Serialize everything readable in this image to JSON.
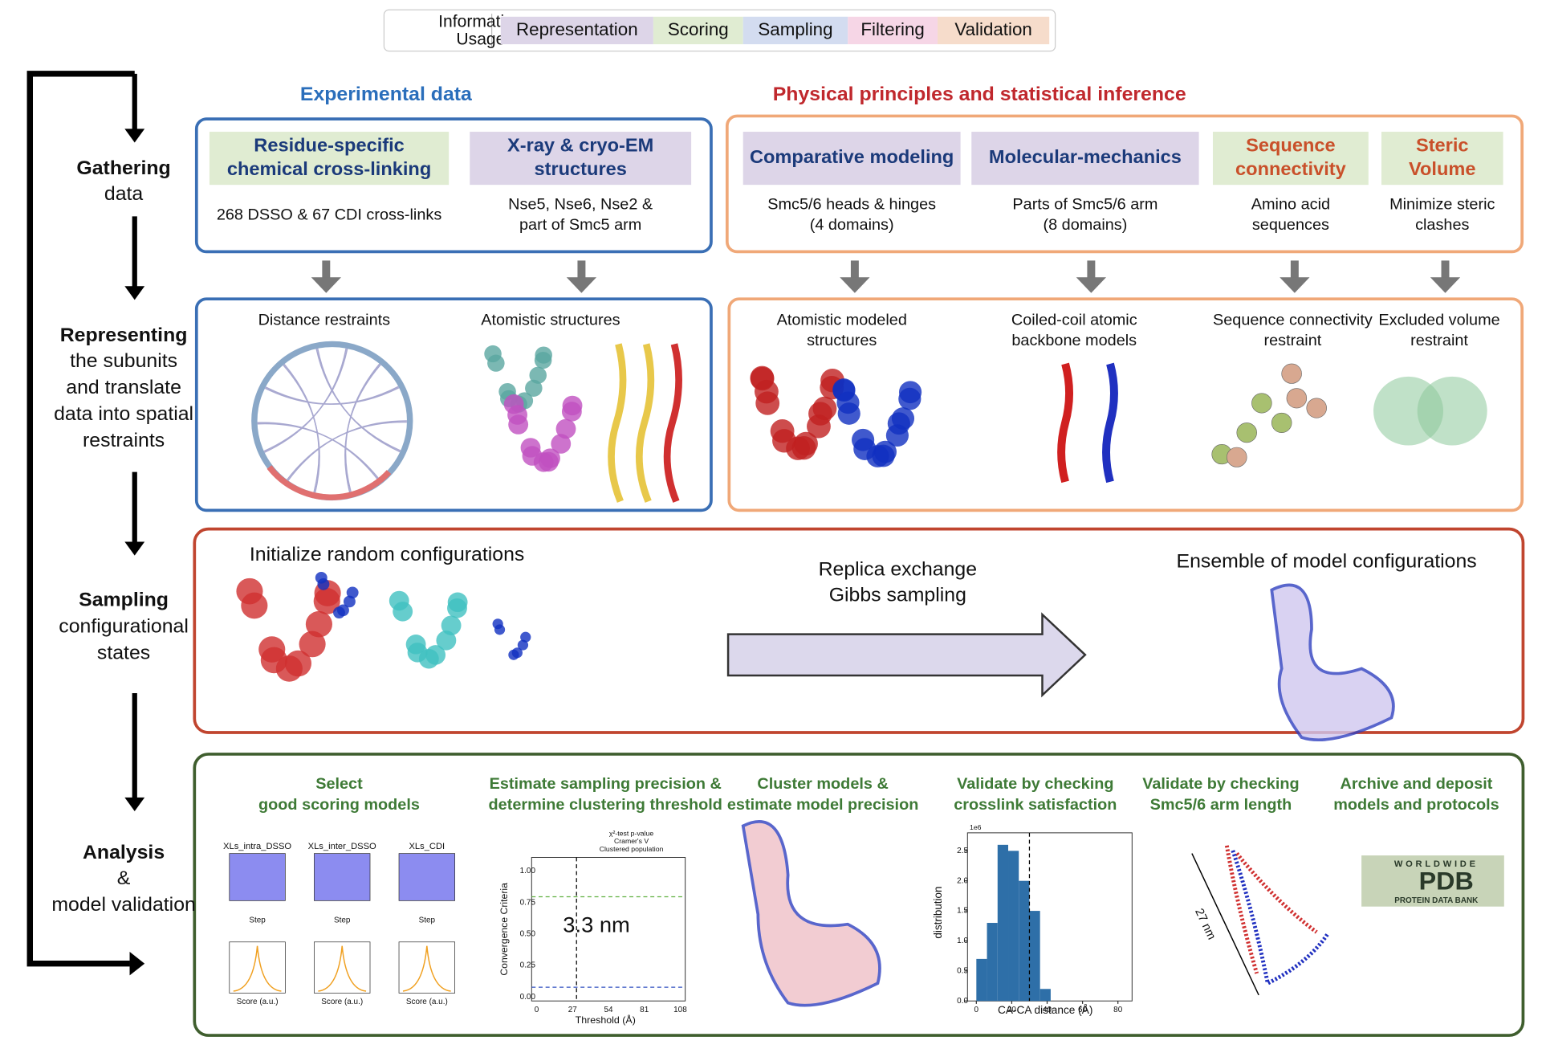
{
  "legend": {
    "title": [
      "Information",
      "Usage"
    ],
    "items": [
      "Representation",
      "Scoring",
      "Sampling",
      "Filtering",
      "Validation"
    ]
  },
  "stages": [
    [
      "Gathering",
      "data"
    ],
    [
      "Representing",
      "the subunits",
      "and translate",
      "data into spatial",
      "restraints"
    ],
    [
      "Sampling",
      "configurational",
      "states"
    ],
    [
      "Analysis",
      "&",
      "model validation"
    ]
  ],
  "groups": {
    "experimental": "Experimental data",
    "physical": "Physical principles and statistical inference"
  },
  "gathering": [
    {
      "title": [
        "Residue-specific",
        "chemical cross-linking"
      ],
      "text": [
        "268 DSSO & 67 CDI cross-links"
      ]
    },
    {
      "title": [
        "X-ray & cryo-EM",
        "structures"
      ],
      "text": [
        "Nse5, Nse6, Nse2 &",
        "part of Smc5 arm"
      ]
    },
    {
      "title": [
        "Comparative modeling"
      ],
      "text": [
        "Smc5/6  heads & hinges",
        "(4 domains)"
      ]
    },
    {
      "title": [
        "Molecular-mechanics"
      ],
      "text": [
        "Parts of Smc5/6 arm",
        "(8 domains)"
      ]
    },
    {
      "title": [
        "Sequence",
        "connectivity"
      ],
      "text": [
        "Amino acid",
        "sequences"
      ]
    },
    {
      "title": [
        "Steric",
        "Volume"
      ],
      "text": [
        "Minimize steric",
        "clashes"
      ]
    }
  ],
  "representing": [
    [
      "Distance restraints"
    ],
    [
      "Atomistic structures"
    ],
    [
      "Atomistic modeled",
      "structures"
    ],
    [
      "Coiled-coil atomic",
      "backbone models"
    ],
    [
      "Sequence connectivity",
      "restraint"
    ],
    [
      "Excluded volume",
      "restraint"
    ]
  ],
  "sampling": {
    "start": "Initialize random configurations",
    "method": [
      "Replica exchange",
      "Gibbs sampling"
    ],
    "end": "Ensemble of model configurations"
  },
  "analysis": [
    [
      "Select",
      "good scoring models"
    ],
    [
      "Estimate sampling precision &",
      "determine clustering threshold"
    ],
    [
      "Cluster models &",
      "estimate model precision"
    ],
    [
      "Validate by checking",
      "crosslink satisfaction"
    ],
    [
      "Validate by checking",
      "Smc5/6 arm length"
    ],
    [
      "Archive and deposit",
      "models and protocols"
    ]
  ],
  "plots": {
    "score": {
      "titles": [
        "XLs_intra_DSSO",
        "XLs_inter_DSSO",
        "XLs_CDI"
      ],
      "xlabel_top": "Step",
      "xlabel_bottom": "Score (a.u.)"
    },
    "convergence": {
      "legend": [
        "χ²-test p-value",
        "Cramer's V",
        "Clustered population"
      ],
      "ylabel": "Convergence Criteria",
      "xlabel": "Threshold (Å)",
      "xticks": [
        "0",
        "27",
        "54",
        "81",
        "108"
      ],
      "yticks": [
        "0.00",
        "0.25",
        "0.50",
        "0.75",
        "1.00"
      ],
      "annotation": "3.3 nm"
    },
    "histogram": {
      "ylabel": "distribution",
      "xlabel": "CA-CA distance (Å)",
      "scale": "1e6",
      "xlim": [
        -5,
        88
      ],
      "ylim": [
        0,
        2.8
      ],
      "xticks": [
        0,
        20,
        40,
        60,
        80
      ],
      "yticks": [
        {
          "value": 0,
          "label": "0.0"
        },
        {
          "value": 0.5,
          "label": "0.5"
        },
        {
          "value": 1,
          "label": "1.0"
        },
        {
          "value": 1.5,
          "label": "1.5"
        },
        {
          "value": 2,
          "label": "2.0"
        },
        {
          "value": 2.5,
          "label": "2.5"
        }
      ],
      "bins": [
        0,
        6,
        12,
        18,
        24,
        30,
        36,
        42
      ],
      "values": [
        0.7,
        1.3,
        2.6,
        2.5,
        2.0,
        1.5,
        0.2
      ],
      "threshold": 30,
      "color": "#2e6fa8"
    },
    "arm": {
      "annotation": "27 nm"
    },
    "pdb": {
      "top": "WORLDWIDE",
      "main": "PDB",
      "bottom": "PROTEIN DATA BANK"
    }
  }
}
